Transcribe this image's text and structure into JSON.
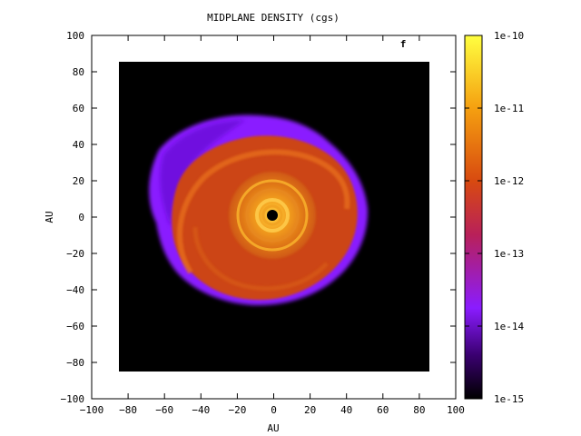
{
  "chart_data": {
    "type": "heatmap",
    "title": "MIDPLANE DENSITY (cgs)",
    "xlabel": "AU",
    "ylabel": "AU",
    "panel_label": "f",
    "xlim": [
      -100,
      100
    ],
    "ylim": [
      -100,
      100
    ],
    "x_ticks": [
      "−100",
      "−80",
      "−60",
      "−40",
      "−20",
      "0",
      "20",
      "40",
      "60",
      "80",
      "100"
    ],
    "y_ticks": [
      "−100",
      "−80",
      "−60",
      "−40",
      "−20",
      "0",
      "20",
      "40",
      "60",
      "80",
      "100"
    ],
    "data_extent_au": [
      -85,
      85
    ],
    "colorbar": {
      "scale": "log",
      "range": [
        1e-15,
        1e-10
      ],
      "tick_labels": [
        "1e-15",
        "1e-14",
        "1e-13",
        "1e-12",
        "1e-11",
        "1e-10"
      ],
      "colors": [
        "#000000",
        "#3a0070",
        "#8a1cff",
        "#b8205a",
        "#d84a10",
        "#f5a010",
        "#ffff40"
      ]
    },
    "features": {
      "disk_outer_radius_au": 52,
      "inner_ring_radius_au": 22,
      "central_hole_radius_au": 3,
      "background_color": "#000000"
    }
  }
}
